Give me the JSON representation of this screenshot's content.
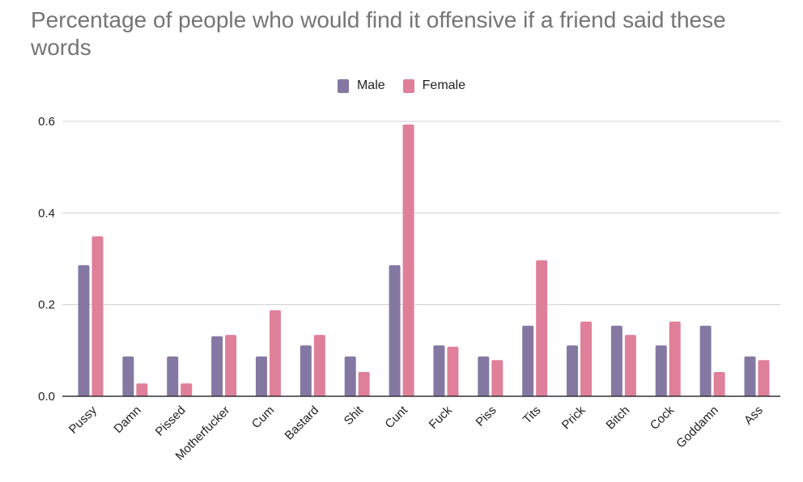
{
  "chart_data": {
    "type": "bar",
    "title": "Percentage of people who would find it offensive if a friend said these words",
    "xlabel": "",
    "ylabel": "",
    "ylim": [
      0,
      0.6
    ],
    "yticks": [
      "0.0",
      "0.2",
      "0.4",
      "0.6"
    ],
    "ytick_values": [
      0,
      0.2,
      0.4,
      0.6
    ],
    "grid": true,
    "legend_position": "top-center",
    "categories": [
      "Pussy",
      "Damn",
      "Pissed",
      "Motherfucker",
      "Cum",
      "Bastard",
      "Shit",
      "Cunt",
      "Fuck",
      "Piss",
      "Tits",
      "Prick",
      "Bitch",
      "Cock",
      "Goddamn",
      "Ass"
    ],
    "series": [
      {
        "name": "Male",
        "color": "#8478a3",
        "values": [
          0.286,
          0.087,
          0.087,
          0.131,
          0.087,
          0.111,
          0.087,
          0.286,
          0.111,
          0.087,
          0.154,
          0.111,
          0.154,
          0.111,
          0.154,
          0.087
        ]
      },
      {
        "name": "Female",
        "color": "#e07f99",
        "values": [
          0.349,
          0.028,
          0.028,
          0.134,
          0.188,
          0.134,
          0.053,
          0.593,
          0.108,
          0.079,
          0.297,
          0.163,
          0.134,
          0.163,
          0.053,
          0.079
        ]
      }
    ]
  }
}
